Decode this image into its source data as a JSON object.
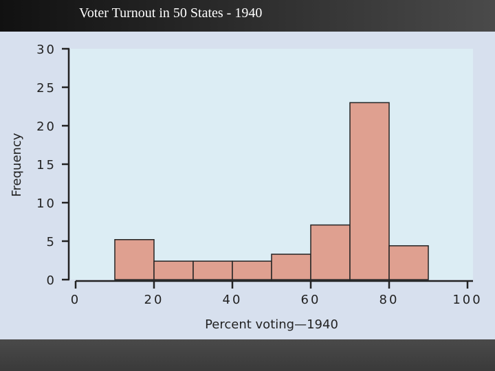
{
  "header": {
    "title": "Voter Turnout in 50 States - 1940"
  },
  "colors": {
    "plot_bg": "#dcedf4",
    "bar_fill": "#dfa090",
    "bar_stroke": "#222222",
    "axis": "#222222"
  },
  "chart_data": {
    "type": "bar",
    "title": "Voter Turnout in 50 States - 1940",
    "xlabel": "Percent voting—1940",
    "ylabel": "Frequency",
    "xlim": [
      0,
      100
    ],
    "ylim": [
      0,
      30
    ],
    "x_ticks": [
      0,
      20,
      40,
      60,
      80,
      100
    ],
    "y_ticks": [
      0,
      5,
      10,
      15,
      20,
      25,
      30
    ],
    "x_tick_labels": [
      "0",
      "20",
      "40",
      "60",
      "80",
      "100"
    ],
    "y_tick_labels": [
      "0",
      "5",
      "10",
      "15",
      "20",
      "25",
      "30"
    ],
    "bins": [
      {
        "start": 10,
        "end": 20,
        "value": 5.2
      },
      {
        "start": 20,
        "end": 30,
        "value": 2.4
      },
      {
        "start": 30,
        "end": 40,
        "value": 2.4
      },
      {
        "start": 40,
        "end": 50,
        "value": 2.4
      },
      {
        "start": 50,
        "end": 60,
        "value": 3.3
      },
      {
        "start": 60,
        "end": 70,
        "value": 7.1
      },
      {
        "start": 70,
        "end": 80,
        "value": 23.0
      },
      {
        "start": 80,
        "end": 90,
        "value": 4.4
      }
    ]
  }
}
